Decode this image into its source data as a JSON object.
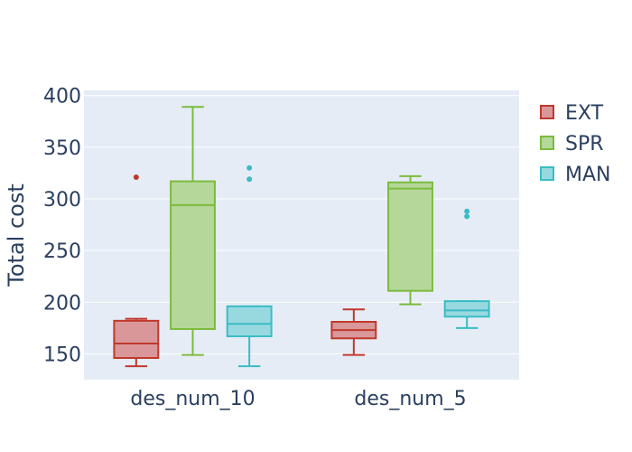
{
  "chart_data": {
    "type": "box",
    "title": "",
    "xlabel": "",
    "ylabel": "Total cost",
    "ylim": [
      125,
      405
    ],
    "yticks": [
      150,
      200,
      250,
      300,
      350,
      400
    ],
    "grid": true,
    "legend_position": "right",
    "categories": [
      "des_num_10",
      "des_num_5"
    ],
    "series": [
      {
        "name": "EXT",
        "color": "#c0392b",
        "fill": "#d9979a",
        "boxes": [
          {
            "category": "des_num_10",
            "min": 138,
            "q1": 146,
            "median": 160,
            "q3": 182,
            "max": 184,
            "outliers": [
              321
            ]
          },
          {
            "category": "des_num_5",
            "min": 149,
            "q1": 165,
            "median": 173,
            "q3": 181,
            "max": 193,
            "outliers": []
          }
        ]
      },
      {
        "name": "SPR",
        "color": "#7cbb3c",
        "fill": "#b5d79a",
        "boxes": [
          {
            "category": "des_num_10",
            "min": 149,
            "q1": 174,
            "median": 294,
            "q3": 317,
            "max": 389,
            "outliers": []
          },
          {
            "category": "des_num_5",
            "min": 198,
            "q1": 211,
            "median": 310,
            "q3": 316,
            "max": 322,
            "outliers": []
          }
        ]
      },
      {
        "name": "MAN",
        "color": "#3bbcc4",
        "fill": "#98d9e0",
        "boxes": [
          {
            "category": "des_num_10",
            "min": 138,
            "q1": 167,
            "median": 179,
            "q3": 196,
            "max": 196,
            "outliers": [
              319,
              330
            ]
          },
          {
            "category": "des_num_5",
            "min": 175,
            "q1": 186,
            "median": 192,
            "q3": 201,
            "max": 201,
            "outliers": [
              283,
              288
            ]
          }
        ]
      }
    ]
  }
}
